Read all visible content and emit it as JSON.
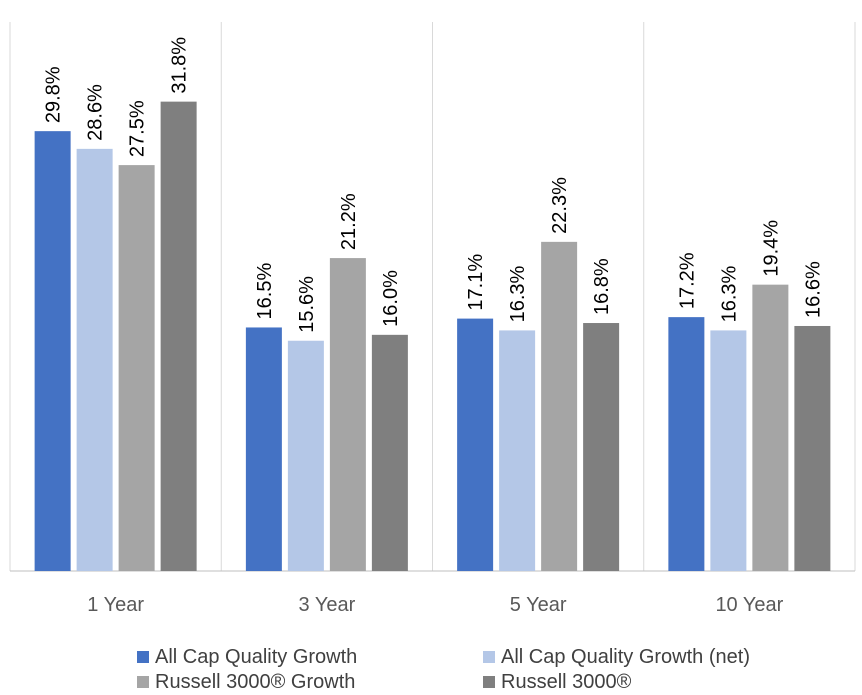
{
  "chart_data": {
    "type": "bar",
    "categories": [
      "1 Year",
      "3 Year",
      "5 Year",
      "10 Year"
    ],
    "series": [
      {
        "name": "All Cap Quality Growth",
        "values": [
          29.8,
          16.5,
          17.1,
          17.2
        ],
        "labels": [
          "29.8%",
          "16.5%",
          "17.1%",
          "17.2%"
        ],
        "color": "#4472c4"
      },
      {
        "name": "All Cap Quality Growth (net)",
        "values": [
          28.6,
          15.6,
          16.3,
          16.3
        ],
        "labels": [
          "28.6%",
          "15.6%",
          "16.3%",
          "16.3%"
        ],
        "color": "#b4c7e7"
      },
      {
        "name": "Russell 3000® Growth",
        "values": [
          27.5,
          21.2,
          22.3,
          19.4
        ],
        "labels": [
          "27.5%",
          "21.2%",
          "22.3%",
          "19.4%"
        ],
        "color": "#a5a5a5"
      },
      {
        "name": "Russell 3000®",
        "values": [
          31.8,
          16.0,
          16.8,
          16.6
        ],
        "labels": [
          "31.8%",
          "16.0%",
          "16.8%",
          "16.6%"
        ],
        "color": "#7f7f7f"
      }
    ],
    "ylim": [
      0,
      37
    ],
    "title": "",
    "xlabel": "",
    "ylabel": "",
    "grid": "vertical category separators",
    "legend": "bottom"
  }
}
